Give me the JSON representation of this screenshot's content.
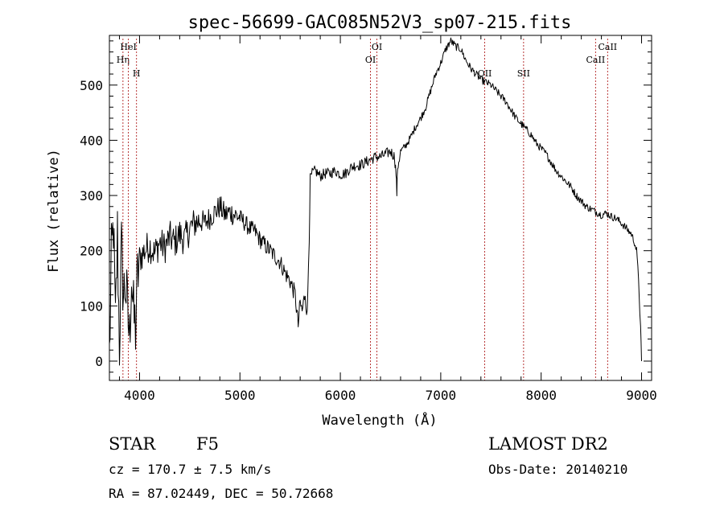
{
  "chart_data": {
    "type": "line",
    "title": "spec-56699-GAC085N52V3_sp07-215.fits",
    "xlabel": "Wavelength (Å)",
    "ylabel": "Flux (relative)",
    "xlim": [
      3700,
      9100
    ],
    "ylim": [
      -35,
      590
    ],
    "xticks": [
      4000,
      5000,
      6000,
      7000,
      8000,
      9000
    ],
    "yticks": [
      0,
      100,
      200,
      300,
      400,
      500
    ],
    "grid": false,
    "series": [
      {
        "x": [
          3700,
          3720,
          3740,
          3760,
          3780,
          3800,
          3820,
          3840,
          3860,
          3880,
          3900,
          3920,
          3940,
          3960,
          3980,
          4000,
          4050,
          4100,
          4150,
          4200,
          4250,
          4300,
          4350,
          4400,
          4450,
          4500,
          4550,
          4600,
          4650,
          4700,
          4750,
          4800,
          4850,
          4900,
          4950,
          5000,
          5050,
          5100,
          5150,
          5200,
          5250,
          5300,
          5350,
          5400,
          5450,
          5500,
          5550,
          5580,
          5600,
          5620,
          5650,
          5670,
          5690,
          5700,
          5720,
          5750,
          5800,
          5850,
          5900,
          5950,
          6000,
          6050,
          6100,
          6150,
          6200,
          6250,
          6300,
          6350,
          6400,
          6450,
          6500,
          6540,
          6555,
          6563,
          6570,
          6600,
          6650,
          6700,
          6750,
          6800,
          6850,
          6900,
          6950,
          7000,
          7050,
          7100,
          7150,
          7200,
          7250,
          7300,
          7350,
          7400,
          7450,
          7500,
          7550,
          7600,
          7650,
          7700,
          7750,
          7800,
          7850,
          7900,
          7950,
          8000,
          8050,
          8100,
          8150,
          8200,
          8250,
          8300,
          8350,
          8400,
          8450,
          8500,
          8550,
          8600,
          8650,
          8700,
          8750,
          8800,
          8850,
          8900,
          8930,
          8950,
          8970,
          8990,
          9000
        ],
        "y": [
          10,
          180,
          250,
          60,
          230,
          30,
          200,
          120,
          140,
          90,
          40,
          160,
          80,
          60,
          150,
          185,
          200,
          210,
          195,
          215,
          205,
          225,
          215,
          230,
          220,
          240,
          250,
          255,
          250,
          260,
          270,
          280,
          265,
          270,
          265,
          260,
          250,
          240,
          235,
          220,
          210,
          200,
          190,
          180,
          160,
          145,
          120,
          65,
          105,
          90,
          125,
          80,
          230,
          330,
          340,
          345,
          335,
          340,
          340,
          345,
          338,
          340,
          350,
          355,
          355,
          360,
          365,
          370,
          370,
          375,
          380,
          370,
          340,
          305,
          350,
          380,
          390,
          405,
          425,
          440,
          460,
          490,
          520,
          540,
          565,
          580,
          570,
          565,
          545,
          530,
          520,
          510,
          505,
          500,
          490,
          480,
          470,
          455,
          440,
          430,
          420,
          410,
          395,
          385,
          375,
          360,
          345,
          335,
          325,
          315,
          300,
          290,
          280,
          275,
          270,
          265,
          268,
          262,
          258,
          250,
          240,
          230,
          215,
          200,
          150,
          60,
          0
        ]
      }
    ],
    "lines": [
      {
        "x": 3835,
        "label": "Hη"
      },
      {
        "x": 3889,
        "label": "HeI"
      },
      {
        "x": 3970,
        "label": "H"
      },
      {
        "x": 6300,
        "label": "OI"
      },
      {
        "x": 6364,
        "label": "OI"
      },
      {
        "x": 7438,
        "label": "OII"
      },
      {
        "x": 7825,
        "label": "SII"
      },
      {
        "x": 8542,
        "label": "CaII"
      },
      {
        "x": 8662,
        "label": "CaII"
      }
    ]
  },
  "info": {
    "object_class": "STAR",
    "subclass": "F5",
    "survey": "LAMOST DR2",
    "redshift": "cz = 170.7 ± 7.5 km/s",
    "obs_date": "Obs-Date: 20140210",
    "coords": "RA =  87.02449, DEC =  50.72668"
  }
}
